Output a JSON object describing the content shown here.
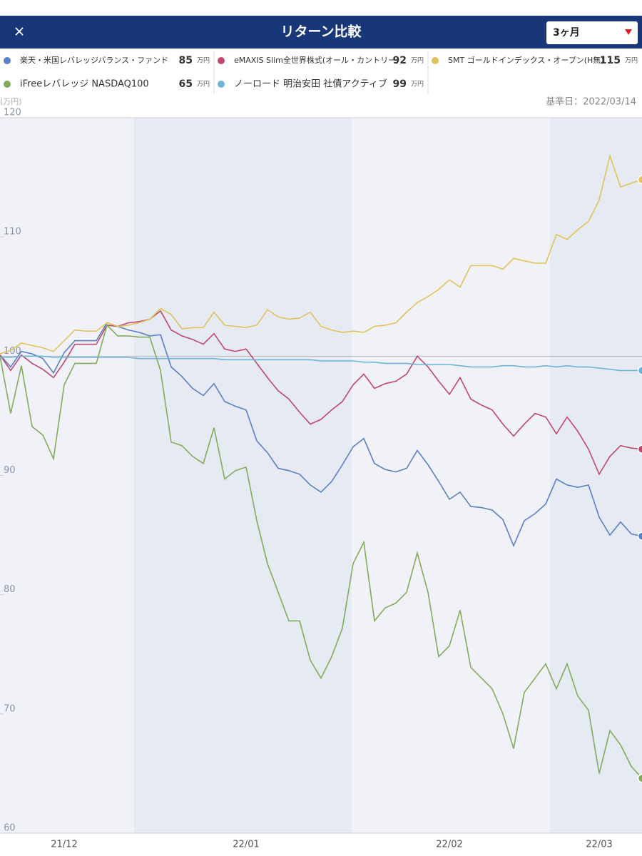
{
  "header": {
    "close": "×",
    "title": "リターン比較",
    "period": "3ヶ月"
  },
  "base_date": "基準日：2022/03/14",
  "chart_data": {
    "type": "line",
    "y_label": "(万円)",
    "unit": "万円",
    "categories": [
      null,
      null,
      null,
      null,
      null,
      null,
      "21/12",
      null,
      null,
      null,
      null,
      null,
      null,
      null,
      null,
      null,
      null,
      null,
      null,
      null,
      null,
      null,
      null,
      "22/01",
      null,
      null,
      null,
      null,
      null,
      null,
      null,
      null,
      null,
      null,
      null,
      null,
      null,
      null,
      null,
      null,
      null,
      null,
      "22/02",
      null,
      null,
      null,
      null,
      null,
      null,
      null,
      null,
      null,
      null,
      null,
      null,
      null,
      "22/03",
      null,
      null,
      null,
      null
    ],
    "ylim": [
      60,
      120
    ],
    "yticks": [
      60,
      70,
      80,
      90,
      100,
      110,
      120
    ],
    "grid": false,
    "reference_line": 100,
    "series": [
      {
        "name": "楽天・米国レバレッジバランス・ファンド",
        "color": "#5b7fc4",
        "current": 85,
        "values": [
          100.1,
          99.1,
          100.4,
          100.2,
          99.8,
          98.6,
          100.3,
          101.3,
          101.3,
          101.3,
          102.8,
          102.5,
          102.2,
          102.0,
          101.7,
          101.8,
          99.1,
          98.3,
          97.3,
          96.7,
          97.7,
          96.2,
          95.8,
          95.5,
          92.9,
          91.9,
          90.6,
          90.4,
          90.1,
          89.2,
          88.6,
          89.5,
          90.9,
          92.4,
          93.1,
          91.0,
          90.5,
          90.3,
          90.6,
          92.1,
          90.9,
          89.5,
          88.0,
          88.6,
          87.4,
          87.3,
          87.1,
          86.3,
          84.1,
          86.2,
          86.8,
          87.6,
          89.7,
          89.2,
          89.0,
          89.2,
          86.5,
          85.0,
          86.1,
          85.1,
          84.9
        ]
      },
      {
        "name": "eMAXIS Slim全世界株式(オール・カントリー)",
        "color": "#c0476e",
        "current": 92,
        "values": [
          100.1,
          98.8,
          100.1,
          99.4,
          98.9,
          98.2,
          99.5,
          101.0,
          101.0,
          101.0,
          102.6,
          102.5,
          102.8,
          102.9,
          103.1,
          103.8,
          102.2,
          101.7,
          101.4,
          101.0,
          101.9,
          100.6,
          100.4,
          100.6,
          99.4,
          98.2,
          97.1,
          96.4,
          95.3,
          94.3,
          94.7,
          95.5,
          96.2,
          97.6,
          98.5,
          97.3,
          97.7,
          97.9,
          98.5,
          100.0,
          99.1,
          97.9,
          96.8,
          98.2,
          96.4,
          95.9,
          95.5,
          94.3,
          93.3,
          94.3,
          95.2,
          94.9,
          93.5,
          94.9,
          93.7,
          92.2,
          90.1,
          91.6,
          92.5,
          92.3,
          92.2
        ]
      },
      {
        "name": "SMT ゴールドインデックス・オープン(H無)",
        "color": "#e0c35a",
        "current": 115,
        "values": [
          100.2,
          100.5,
          101.1,
          100.9,
          100.7,
          100.4,
          101.3,
          102.2,
          102.1,
          102.1,
          102.8,
          102.5,
          102.6,
          102.8,
          103.1,
          104.0,
          103.5,
          102.3,
          102.4,
          102.4,
          103.7,
          102.6,
          102.5,
          102.4,
          102.6,
          103.9,
          103.3,
          103.1,
          103.2,
          103.7,
          102.5,
          102.2,
          102.0,
          102.1,
          102.0,
          102.5,
          102.6,
          102.8,
          103.7,
          104.5,
          105.0,
          105.6,
          106.4,
          105.8,
          107.6,
          107.6,
          107.6,
          107.3,
          108.2,
          108.0,
          107.8,
          107.8,
          110.2,
          109.8,
          110.6,
          111.3,
          113.1,
          116.8,
          114.2,
          114.5,
          114.8
        ]
      },
      {
        "name": "iFreeレバレッジ NASDAQ100",
        "color": "#82ab5a",
        "current": 65,
        "values": [
          100.0,
          95.2,
          99.2,
          94.1,
          93.4,
          91.4,
          97.6,
          99.4,
          99.4,
          99.4,
          102.6,
          101.7,
          101.7,
          101.6,
          101.6,
          98.8,
          92.8,
          92.5,
          91.6,
          91.0,
          94.0,
          89.7,
          90.4,
          90.7,
          86.2,
          82.6,
          80.2,
          77.8,
          77.8,
          74.5,
          73.0,
          74.8,
          77.2,
          82.6,
          84.4,
          77.8,
          78.9,
          79.3,
          80.2,
          83.5,
          80.2,
          74.8,
          75.7,
          78.7,
          73.9,
          73.0,
          72.1,
          70.0,
          67.1,
          71.8,
          73.0,
          74.2,
          72.1,
          74.2,
          71.5,
          70.3,
          65.0,
          68.6,
          67.4,
          65.6,
          64.6
        ]
      },
      {
        "name": "ノーロード 明治安田 社債アクティブ",
        "color": "#6cb4d8",
        "current": 99,
        "values": [
          99.9,
          99.9,
          100.0,
          100.0,
          100.0,
          99.9,
          99.9,
          99.9,
          99.9,
          99.9,
          99.9,
          99.9,
          99.9,
          99.8,
          99.8,
          99.8,
          99.8,
          99.8,
          99.8,
          99.8,
          99.8,
          99.7,
          99.7,
          99.7,
          99.7,
          99.7,
          99.7,
          99.7,
          99.7,
          99.7,
          99.6,
          99.6,
          99.6,
          99.6,
          99.5,
          99.5,
          99.4,
          99.4,
          99.4,
          99.3,
          99.3,
          99.3,
          99.3,
          99.2,
          99.1,
          99.1,
          99.1,
          99.2,
          99.2,
          99.1,
          99.1,
          99.2,
          99.1,
          99.2,
          99.1,
          99.1,
          99.0,
          98.9,
          98.8,
          98.8,
          98.8
        ]
      }
    ]
  }
}
